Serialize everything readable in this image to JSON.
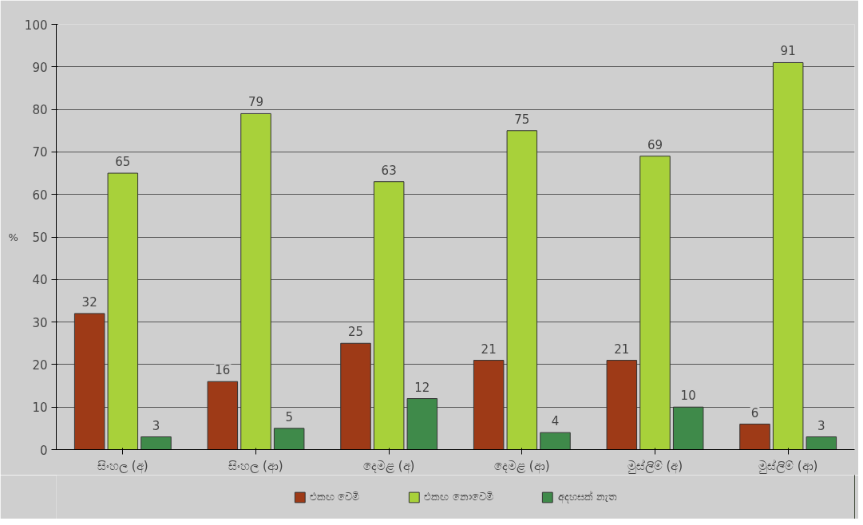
{
  "chart_data": {
    "type": "bar",
    "ylabel": "%",
    "categories": [
      "සිංහල (අ)",
      "සිංහල (ආ)",
      "දෙමළ (අ)",
      "දෙමළ (ආ)",
      "මුස්ලිම් (අ)",
      "මුස්ලිම් (ආ)"
    ],
    "series": [
      {
        "name": "එකඟ වෙමි",
        "color": "#9e3a17",
        "values": [
          32,
          16,
          25,
          21,
          21,
          6
        ]
      },
      {
        "name": "එකඟ නොවෙමි",
        "color": "#a8d13a",
        "values": [
          65,
          79,
          63,
          75,
          69,
          91
        ]
      },
      {
        "name": "අදහසක් නැත",
        "color": "#3f8a4a",
        "values": [
          3,
          5,
          12,
          4,
          10,
          3
        ]
      }
    ],
    "ylim": [
      0,
      100
    ],
    "yticks": [
      0,
      10,
      20,
      30,
      40,
      50,
      60,
      70,
      80,
      90,
      100
    ],
    "grid": "y",
    "data_labels": true,
    "legend": "bottom"
  }
}
